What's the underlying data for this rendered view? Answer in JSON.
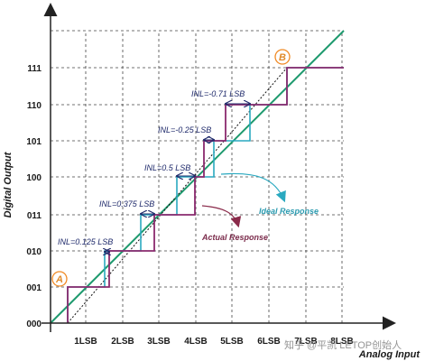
{
  "axes": {
    "y_title": "Digital Output",
    "x_title": "Analog Input",
    "y_ticks": [
      "000",
      "001",
      "010",
      "011",
      "100",
      "101",
      "110",
      "111"
    ],
    "x_ticks": [
      "1LSB",
      "2LSB",
      "3LSB",
      "4LSB",
      "5LSB",
      "6LSB",
      "7LSB",
      "8LSB"
    ]
  },
  "annotations": {
    "inl": [
      "INL=0.125 LSB",
      "INL=0.375 LSB",
      "INL=0.5 LSB",
      "INL=-0.25 LSB",
      "INL=-0.71 LSB"
    ],
    "ideal_response": "Ideal Response",
    "actual_response": "Actual Response",
    "marker_a": "A",
    "marker_b": "B"
  },
  "watermark": "知乎 @平凯 LETOP创始人",
  "colors": {
    "ideal_line": "#1e9a6e",
    "ideal_steps": "#2aa9c0",
    "actual_steps": "#8a2a6e",
    "markers": "#f08a24",
    "axis": "#222222",
    "grid": "#444444"
  }
}
